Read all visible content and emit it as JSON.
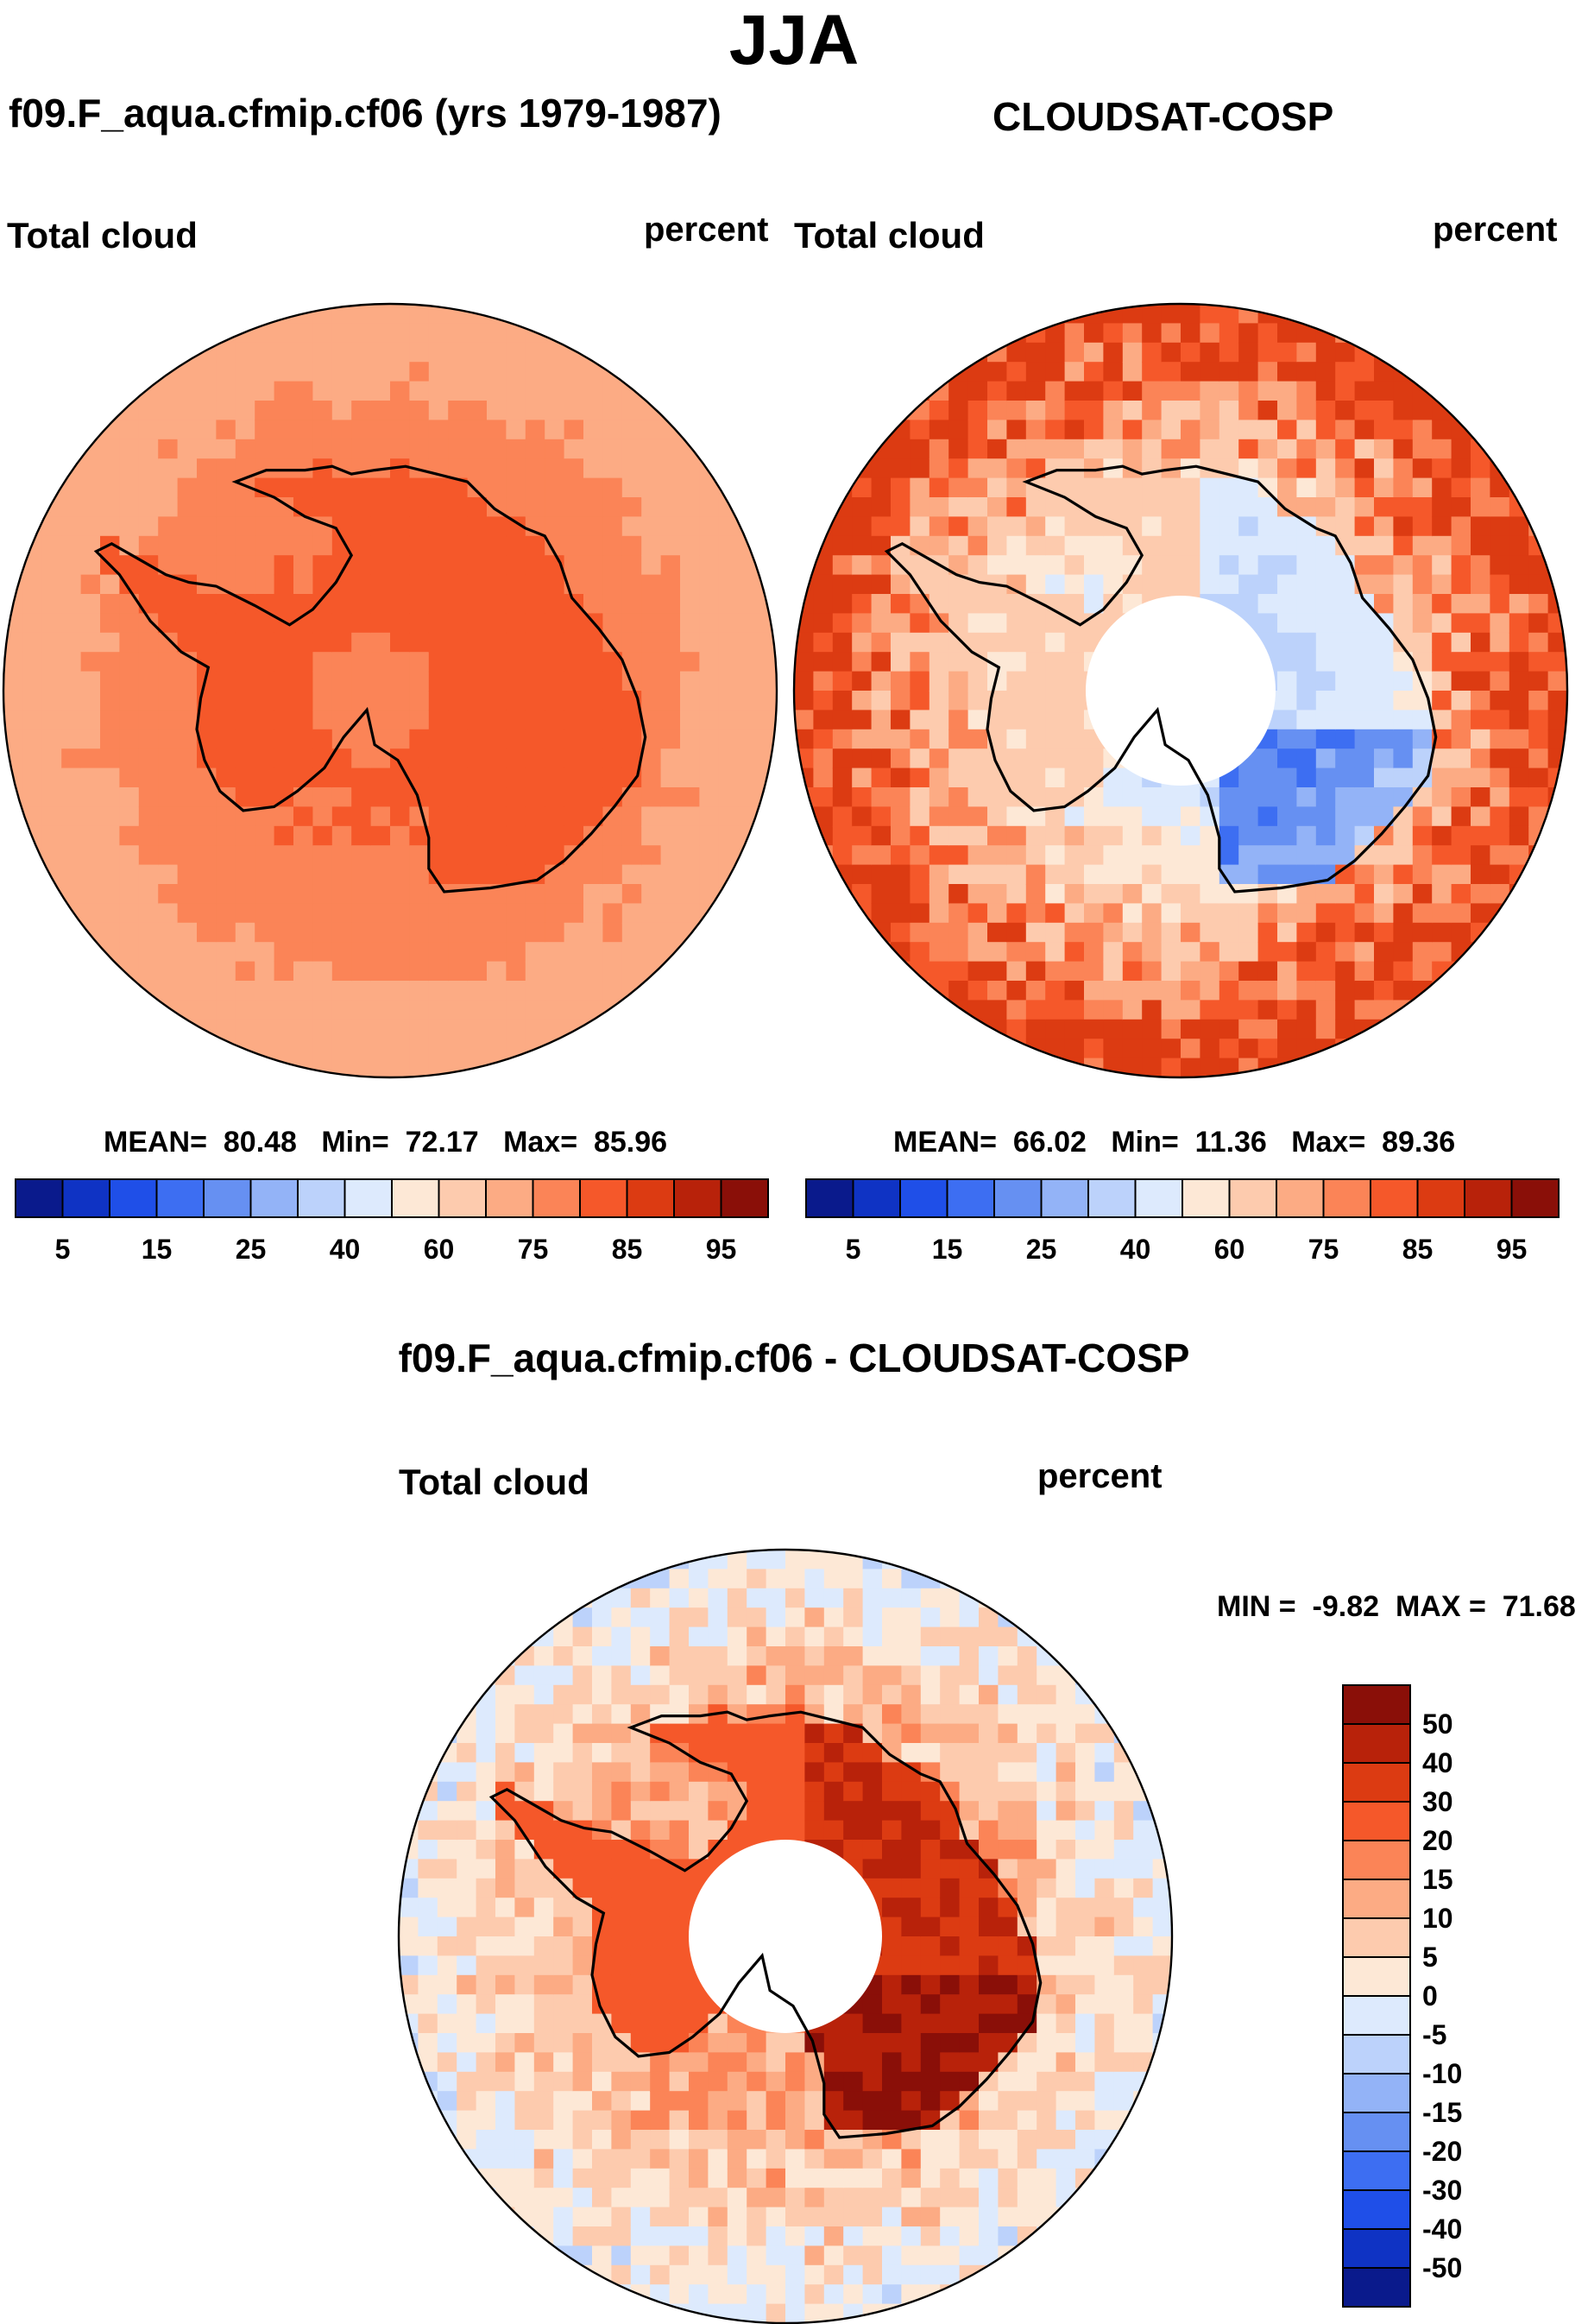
{
  "figure": {
    "title": "JJA",
    "case_title": "f09.F_aqua.cfmip.cf06 (yrs 1979-1987)",
    "obs_title": "CLOUDSAT-COSP",
    "diff_title": "f09.F_aqua.cfmip.cf06 - CLOUDSAT-COSP"
  },
  "chart_data": [
    {
      "type": "heatmap",
      "projection": "south polar stereographic",
      "variable": "Total cloud",
      "units": "percent",
      "stats": {
        "mean_label": "MEAN=",
        "mean": "80.48",
        "min_label": "Min=",
        "min": "72.17",
        "max_label": "Max=",
        "max": "85.96"
      },
      "colorbar": {
        "orientation": "horizontal",
        "levels": [
          "5",
          "10",
          "15",
          "20",
          "25",
          "30",
          "40",
          "50",
          "60",
          "70",
          "75",
          "80",
          "85",
          "90",
          "95"
        ],
        "labels": [
          "5",
          "15",
          "25",
          "40",
          "60",
          "75",
          "85",
          "95"
        ],
        "colors": [
          "#0a1a8c",
          "#0f33c4",
          "#1f4fe8",
          "#3d6ef2",
          "#6690f2",
          "#93b3f7",
          "#bcd2fb",
          "#ddeafd",
          "#fde8d6",
          "#fdcbae",
          "#fcab84",
          "#fb8457",
          "#f5582a",
          "#dc3b12",
          "#b8220a",
          "#8a0f08"
        ]
      },
      "field": {
        "base_value": 80,
        "range": [
          72.17,
          85.96
        ]
      }
    },
    {
      "type": "heatmap",
      "projection": "south polar stereographic",
      "variable": "Total cloud",
      "units": "percent",
      "stats": {
        "mean_label": "MEAN=",
        "mean": "66.02",
        "min_label": "Min=",
        "min": "11.36",
        "max_label": "Max=",
        "max": "89.36"
      },
      "colorbar": {
        "orientation": "horizontal",
        "levels": [
          "5",
          "10",
          "15",
          "20",
          "25",
          "30",
          "40",
          "50",
          "60",
          "70",
          "75",
          "80",
          "85",
          "90",
          "95"
        ],
        "labels": [
          "5",
          "15",
          "25",
          "40",
          "60",
          "75",
          "85",
          "95"
        ],
        "colors": [
          "#0a1a8c",
          "#0f33c4",
          "#1f4fe8",
          "#3d6ef2",
          "#6690f2",
          "#93b3f7",
          "#bcd2fb",
          "#ddeafd",
          "#fde8d6",
          "#fdcbae",
          "#fcab84",
          "#fb8457",
          "#f5582a",
          "#dc3b12",
          "#b8220a",
          "#8a0f08"
        ]
      },
      "field": {
        "missing_pole_cap": true,
        "range": [
          11.36,
          89.36
        ]
      }
    },
    {
      "type": "heatmap",
      "projection": "south polar stereographic",
      "variable": "Total cloud",
      "units": "percent",
      "stats": {
        "min_label": "MIN =",
        "min": "-9.82",
        "max_label": "MAX =",
        "max": "71.68"
      },
      "colorbar": {
        "orientation": "vertical",
        "levels": [
          "-50",
          "-40",
          "-30",
          "-20",
          "-15",
          "-10",
          "-5",
          "0",
          "5",
          "10",
          "15",
          "20",
          "30",
          "40",
          "50"
        ],
        "labels": [
          "-50",
          "-40",
          "-30",
          "-20",
          "-15",
          "-10",
          "-5",
          "0",
          "5",
          "10",
          "15",
          "20",
          "30",
          "40",
          "50"
        ],
        "colors": [
          "#0a1a8c",
          "#0f33c4",
          "#1f4fe8",
          "#3d6ef2",
          "#6690f2",
          "#93b3f7",
          "#bcd2fb",
          "#ddeafd",
          "#fde8d6",
          "#fdcbae",
          "#fcab84",
          "#fb8457",
          "#f5582a",
          "#dc3b12",
          "#b8220a",
          "#8a0f08"
        ]
      },
      "field": {
        "missing_pole_cap": true,
        "range": [
          -9.82,
          71.68
        ]
      }
    }
  ]
}
